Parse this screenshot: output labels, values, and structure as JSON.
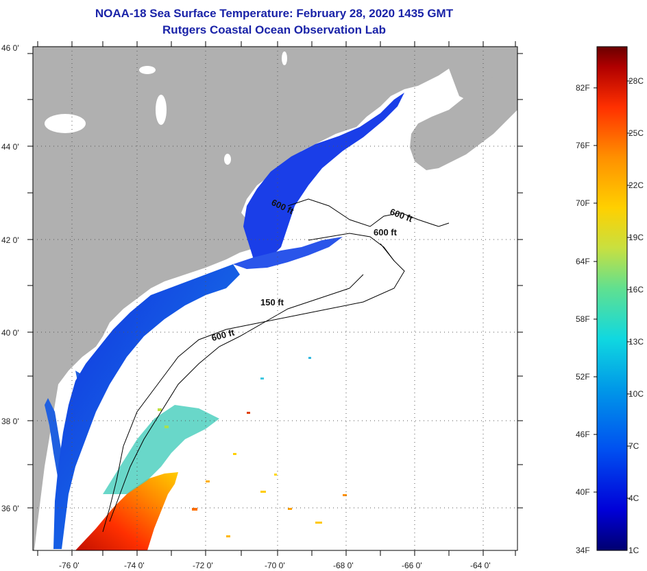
{
  "title": "NOAA-18 Sea Surface Temperature:  February 28, 2020 1435 GMT",
  "subtitle": "Rutgers Coastal Ocean Observation Lab",
  "lat_labels": [
    "46 0'",
    "44 0'",
    "42 0'",
    "40 0'",
    "38 0'",
    "36 0'"
  ],
  "lon_labels": [
    "-76 0'",
    "-74 0'",
    "-72 0'",
    "-70 0'",
    "-68 0'",
    "-66 0'",
    "-64 0'"
  ],
  "contour_labels": [
    "600 ft",
    "600 ft",
    "600 ft",
    "150 ft",
    "600 ft"
  ],
  "colorbar": {
    "fahrenheit": [
      "82F",
      "76F",
      "70F",
      "64F",
      "58F",
      "52F",
      "46F",
      "40F",
      "34F"
    ],
    "celsius": [
      "28C",
      "25C",
      "22C",
      "19C",
      "16C",
      "13C",
      "10C",
      "7C",
      "4C",
      "1C"
    ]
  },
  "colors": {
    "land": "#b0b0b0",
    "ocean_missing": "#ffffff",
    "title": "#1a23a8"
  }
}
